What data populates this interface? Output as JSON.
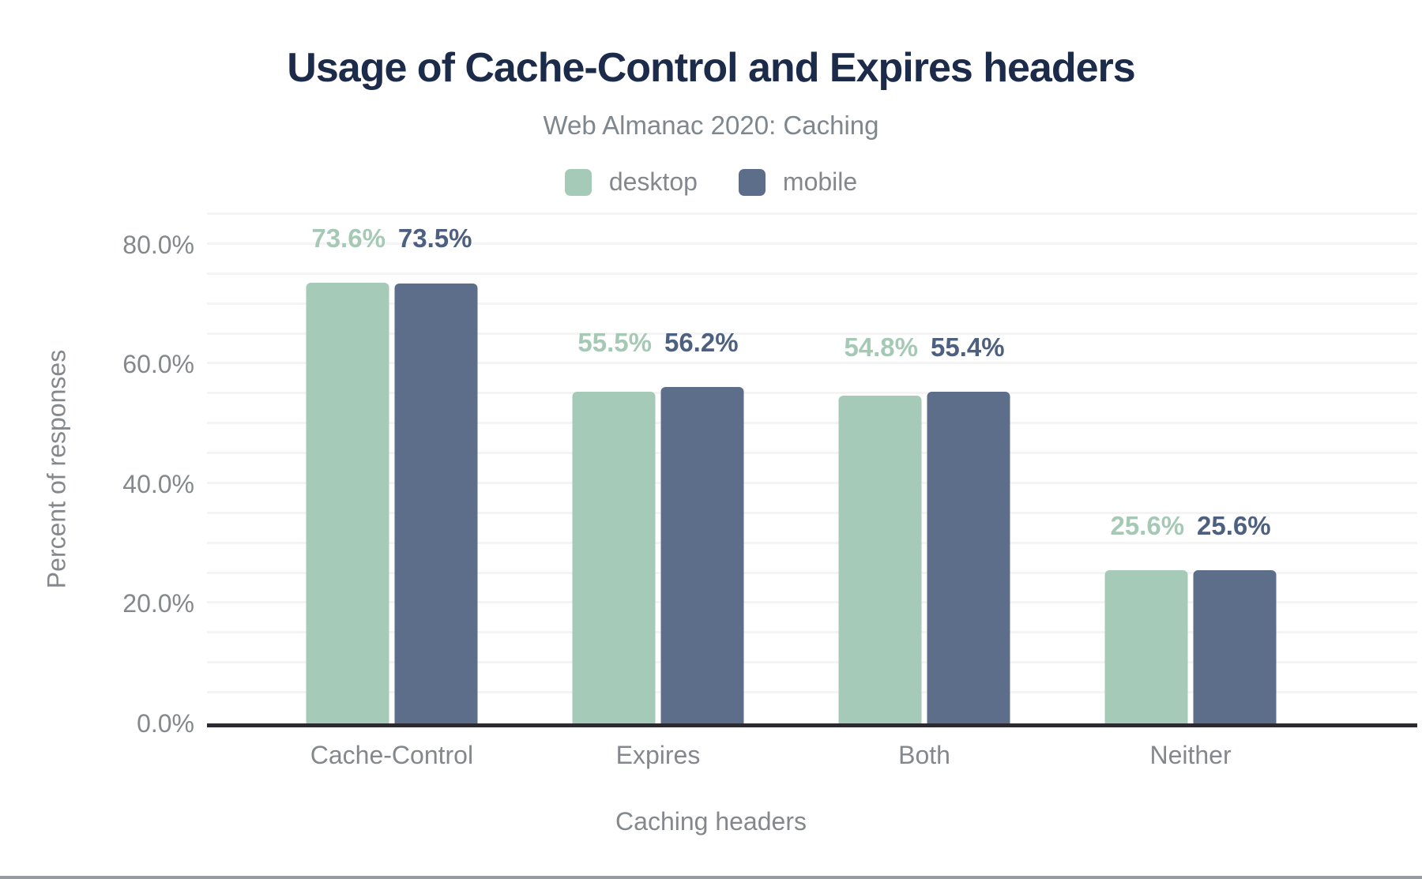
{
  "colors": {
    "title": "#1c2b4a",
    "subtitle": "#7e868e",
    "axis_text": "#84888d",
    "axis_line": "#2a2a30",
    "gridline": "#f4f4f4",
    "page_border": "#979ca1"
  },
  "chart_data": {
    "type": "bar",
    "title": "Usage of Cache-Control and Expires headers",
    "subtitle": "Web Almanac 2020: Caching",
    "categories": [
      "Cache-Control",
      "Expires",
      "Both",
      "Neither"
    ],
    "series": [
      {
        "name": "desktop",
        "color": "#a5cab7",
        "label_color": "#a5c9b5",
        "values": [
          73.6,
          55.5,
          54.8,
          25.6
        ]
      },
      {
        "name": "mobile",
        "color": "#5c6e8a",
        "label_color": "#4e6080",
        "values": [
          73.5,
          56.2,
          55.4,
          25.6
        ]
      }
    ],
    "value_label_format": "one_decimal_percent",
    "xlabel": "Caching headers",
    "ylabel": "Percent of responses",
    "y_ticks": [
      {
        "value": 0,
        "label": "0.0%"
      },
      {
        "value": 20,
        "label": "20.0%"
      },
      {
        "value": 40,
        "label": "40.0%"
      },
      {
        "value": 60,
        "label": "60.0%"
      },
      {
        "value": 80,
        "label": "80.0%"
      }
    ],
    "ylim": [
      0,
      85
    ],
    "grid_step": 5,
    "grid": true,
    "legend_position": "top"
  }
}
